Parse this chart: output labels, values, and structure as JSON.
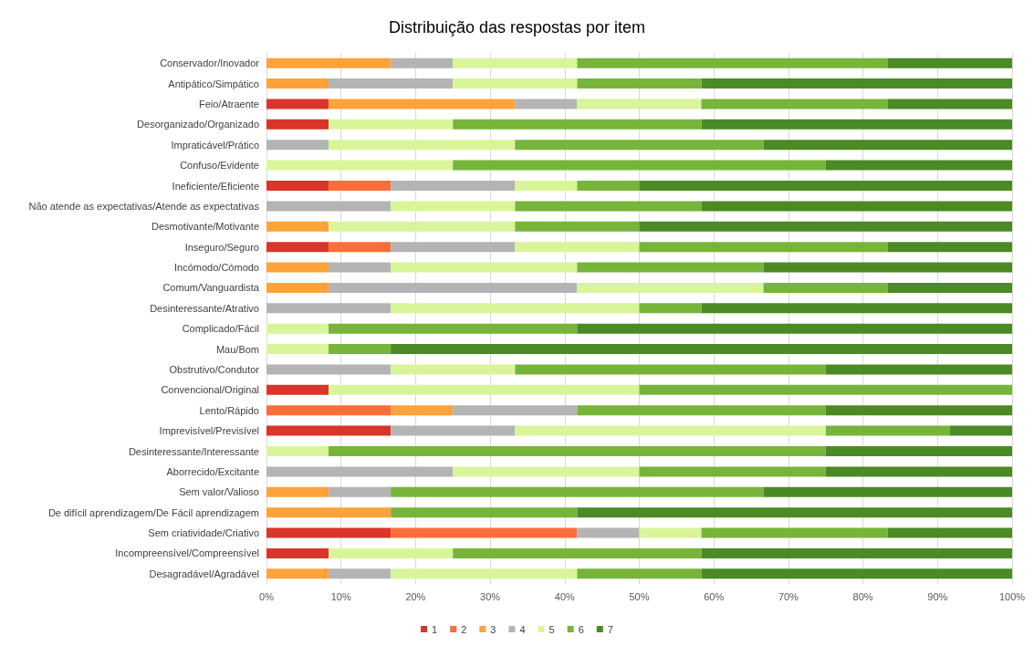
{
  "chart_data": {
    "type": "bar",
    "title": "Distribuição das respostas por item",
    "orientation": "horizontal",
    "stacked": true,
    "categories": [
      "Conservador/Inovador",
      "Antipático/Simpático",
      "Feio/Atraente",
      "Desorganizado/Organizado",
      "Impraticável/Prático",
      "Confuso/Evidente",
      "Ineficiente/Eficiente",
      "Não atende as expectativas/Atende as expectativas",
      "Desmotivante/Motivante",
      "Inseguro/Seguro",
      "Incómodo/Cómodo",
      "Comum/Vanguardista",
      "Desinteressante/Atrativo",
      "Complicado/Fácil",
      "Mau/Bom",
      "Obstrutivo/Condutor",
      "Convencional/Original",
      "Lento/Rápido",
      "Imprevisível/Previsível",
      "Desinteressante/Interessante",
      "Aborrecido/Excitante",
      "Sem valor/Valioso",
      "De difícil aprendizagem/De Fácil aprendizagem",
      "Sem criatividade/Criativo",
      "Incompreensível/Compreensível",
      "Desagradável/Agradável"
    ],
    "series": [
      {
        "name": "1",
        "color": "#d9352a",
        "values": [
          0,
          0,
          8.33,
          8.33,
          0,
          0,
          8.33,
          0,
          0,
          8.33,
          0,
          0,
          0,
          0,
          0,
          0,
          8.33,
          0,
          16.67,
          0,
          0,
          0,
          0,
          16.67,
          8.33,
          0
        ]
      },
      {
        "name": "2",
        "color": "#fb6d3a",
        "values": [
          0,
          0,
          0,
          0,
          0,
          0,
          8.33,
          0,
          0,
          8.33,
          0,
          0,
          0,
          0,
          0,
          0,
          0,
          16.67,
          0,
          0,
          0,
          0,
          0,
          25,
          0,
          0
        ]
      },
      {
        "name": "3",
        "color": "#ffa23a",
        "values": [
          16.67,
          8.33,
          25,
          0,
          0,
          0,
          0,
          0,
          8.33,
          0,
          8.33,
          8.33,
          0,
          0,
          0,
          0,
          0,
          8.33,
          0,
          0,
          0,
          8.33,
          16.67,
          0,
          0,
          8.33
        ]
      },
      {
        "name": "4",
        "color": "#b4b4b4",
        "values": [
          8.33,
          16.67,
          8.33,
          0,
          8.33,
          0,
          16.67,
          16.67,
          0,
          16.67,
          8.33,
          33.33,
          16.67,
          0,
          0,
          16.67,
          0,
          16.67,
          16.67,
          0,
          25,
          8.33,
          0,
          8.33,
          0,
          8.33
        ]
      },
      {
        "name": "5",
        "color": "#d9f59a",
        "values": [
          16.67,
          16.67,
          16.67,
          16.67,
          25,
          25,
          8.33,
          16.67,
          25,
          16.67,
          25,
          25,
          33.33,
          8.33,
          8.33,
          16.67,
          41.67,
          0,
          41.67,
          8.33,
          25,
          0,
          0,
          8.33,
          16.67,
          25
        ]
      },
      {
        "name": "6",
        "color": "#77b43a",
        "values": [
          41.67,
          16.67,
          25,
          33.33,
          33.33,
          50,
          8.33,
          25,
          16.67,
          33.33,
          25,
          16.67,
          8.33,
          33.33,
          8.33,
          41.67,
          50,
          33.33,
          16.67,
          66.67,
          25,
          50,
          25,
          25,
          33.33,
          16.67
        ]
      },
      {
        "name": "7",
        "color": "#4b8a24",
        "values": [
          16.66,
          41.66,
          16.67,
          41.67,
          33.34,
          25,
          50.01,
          41.66,
          50,
          16.67,
          33.34,
          16.67,
          41.67,
          58.34,
          83.34,
          24.99,
          0,
          25,
          8.32,
          25,
          25,
          33.34,
          58.33,
          16.67,
          41.67,
          41.67
        ]
      }
    ],
    "xlim": [
      0,
      100
    ],
    "xticks": [
      {
        "value": 0,
        "label": "0%"
      },
      {
        "value": 10,
        "label": "10%"
      },
      {
        "value": 20,
        "label": "20%"
      },
      {
        "value": 30,
        "label": "30%"
      },
      {
        "value": 40,
        "label": "40%"
      },
      {
        "value": 50,
        "label": "50%"
      },
      {
        "value": 60,
        "label": "60%"
      },
      {
        "value": 70,
        "label": "70%"
      },
      {
        "value": 80,
        "label": "80%"
      },
      {
        "value": 90,
        "label": "90%"
      },
      {
        "value": 100,
        "label": "100%"
      }
    ],
    "grid": "x",
    "legend": "bottom"
  }
}
